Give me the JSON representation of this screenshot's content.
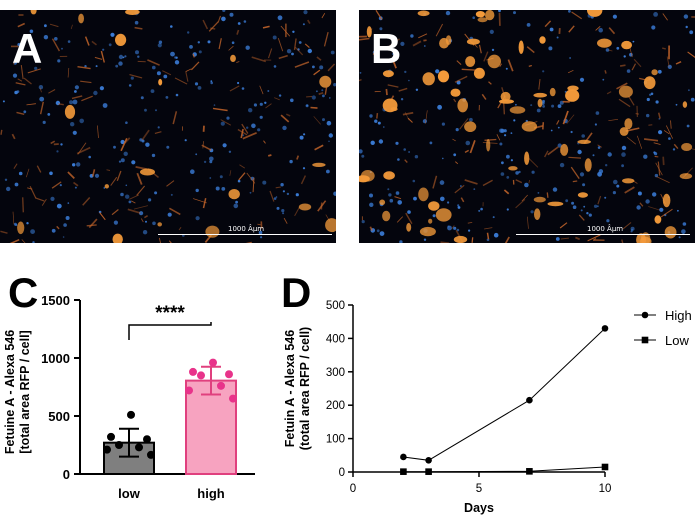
{
  "panels": {
    "a": {
      "letter": "A",
      "scale_label": "1000 Âµm"
    },
    "b": {
      "letter": "B",
      "scale_label": "1000 Âµm"
    },
    "c": {
      "letter": "C"
    },
    "d": {
      "letter": "D"
    }
  },
  "colors": {
    "bar_low": "#7f7f7f",
    "bar_high": "#f7a3c0",
    "bar_high_edge": "#e0407e",
    "dots_high": "#e8338a",
    "dots_low": "#000000"
  },
  "chart_data": [
    {
      "type": "bar",
      "panel": "C",
      "categories": [
        "low",
        "high"
      ],
      "values": [
        270,
        805
      ],
      "errors": [
        120,
        120
      ],
      "points": [
        [
          510,
          320,
          300,
          250,
          230,
          210,
          165
        ],
        [
          960,
          880,
          860,
          850,
          760,
          720,
          650
        ]
      ],
      "ylabel": "Fetuine A - Alexa 546",
      "ylabel2": "[total area RFP  / cell]",
      "yticks": [
        "0",
        "500",
        "1000",
        "1500"
      ],
      "ylim": [
        0,
        1500
      ],
      "significance": "****"
    },
    {
      "type": "line",
      "panel": "D",
      "series": [
        {
          "name": "High",
          "x": [
            2,
            3,
            7,
            10
          ],
          "y": [
            45,
            35,
            215,
            430
          ]
        },
        {
          "name": "Low",
          "x": [
            2,
            3,
            7,
            10
          ],
          "y": [
            1,
            1,
            2,
            15
          ]
        }
      ],
      "xlabel": "Days",
      "ylabel": "Fetuin A - Alexa 546",
      "ylabel2": "(total area RFP / cell)",
      "xticks": [
        "0",
        "5",
        "10"
      ],
      "yticks": [
        "0",
        "100",
        "200",
        "300",
        "400",
        "500"
      ],
      "xlim": [
        0,
        10
      ],
      "ylim": [
        0,
        500
      ],
      "legend_position": "right"
    }
  ]
}
